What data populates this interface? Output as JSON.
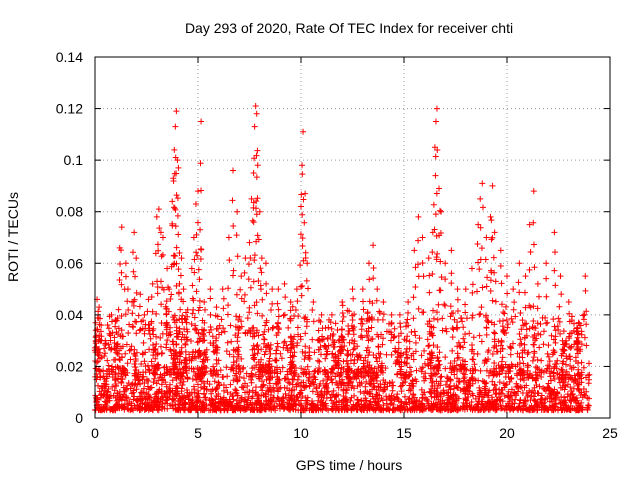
{
  "chart_data": {
    "type": "scatter",
    "title": "Day 293 of 2020, Rate Of TEC Index for receiver chti",
    "xlabel": "GPS time / hours",
    "ylabel": "ROTI / TECUs",
    "xlim": [
      0,
      25
    ],
    "ylim": [
      0,
      0.14
    ],
    "x_ticks": [
      0,
      5,
      10,
      15,
      20,
      25
    ],
    "x_tick_labels": [
      "0",
      "5",
      "10",
      "15",
      "20",
      "25"
    ],
    "y_ticks": [
      0,
      0.02,
      0.04,
      0.06,
      0.08,
      0.1,
      0.12,
      0.14
    ],
    "y_tick_labels": [
      "0",
      "0.02",
      "0.04",
      "0.06",
      "0.08",
      "0.1",
      "0.12",
      "0.14"
    ],
    "grid": true,
    "marker": "plus",
    "color": "#ff0000",
    "series": [
      {
        "points": [
          [
            0.1,
            0.046
          ],
          [
            0.2,
            0.043
          ],
          [
            0.3,
            0.036
          ],
          [
            0.5,
            0.03
          ],
          [
            0.8,
            0.04
          ],
          [
            1.0,
            0.038
          ],
          [
            1.2,
            0.066
          ],
          [
            1.3,
            0.074
          ],
          [
            1.5,
            0.06
          ],
          [
            1.6,
            0.05
          ],
          [
            1.8,
            0.045
          ],
          [
            1.9,
            0.072
          ],
          [
            2.0,
            0.062
          ],
          [
            2.2,
            0.048
          ],
          [
            2.4,
            0.04
          ],
          [
            2.6,
            0.046
          ],
          [
            2.8,
            0.052
          ],
          [
            3.0,
            0.078
          ],
          [
            3.1,
            0.081
          ],
          [
            3.2,
            0.072
          ],
          [
            3.3,
            0.07
          ],
          [
            3.5,
            0.058
          ],
          [
            3.6,
            0.05
          ],
          [
            3.75,
            0.084
          ],
          [
            3.8,
            0.093
          ],
          [
            3.85,
            0.104
          ],
          [
            3.9,
            0.113
          ],
          [
            3.95,
            0.119
          ],
          [
            4.0,
            0.1
          ],
          [
            4.05,
            0.097
          ],
          [
            4.1,
            0.064
          ],
          [
            4.2,
            0.062
          ],
          [
            4.3,
            0.05
          ],
          [
            4.5,
            0.042
          ],
          [
            4.7,
            0.058
          ],
          [
            4.8,
            0.07
          ],
          [
            4.9,
            0.083
          ],
          [
            5.0,
            0.088
          ],
          [
            5.1,
            0.073
          ],
          [
            5.15,
            0.115
          ],
          [
            5.3,
            0.045
          ],
          [
            5.6,
            0.05
          ],
          [
            5.9,
            0.043
          ],
          [
            6.2,
            0.05
          ],
          [
            6.5,
            0.07
          ],
          [
            6.7,
            0.096
          ],
          [
            6.9,
            0.08
          ],
          [
            7.1,
            0.055
          ],
          [
            7.3,
            0.062
          ],
          [
            7.5,
            0.068
          ],
          [
            7.6,
            0.085
          ],
          [
            7.7,
            0.095
          ],
          [
            7.75,
            0.113
          ],
          [
            7.8,
            0.121
          ],
          [
            7.85,
            0.118
          ],
          [
            7.9,
            0.098
          ],
          [
            8.0,
            0.08
          ],
          [
            8.1,
            0.062
          ],
          [
            8.3,
            0.06
          ],
          [
            8.6,
            0.05
          ],
          [
            8.9,
            0.05
          ],
          [
            9.2,
            0.052
          ],
          [
            9.5,
            0.045
          ],
          [
            9.8,
            0.05
          ],
          [
            10.0,
            0.082
          ],
          [
            10.05,
            0.098
          ],
          [
            10.1,
            0.111
          ],
          [
            10.2,
            0.087
          ],
          [
            10.3,
            0.06
          ],
          [
            10.6,
            0.045
          ],
          [
            11.0,
            0.04
          ],
          [
            11.5,
            0.04
          ],
          [
            12.0,
            0.045
          ],
          [
            12.5,
            0.05
          ],
          [
            13.0,
            0.05
          ],
          [
            13.3,
            0.06
          ],
          [
            13.5,
            0.067
          ],
          [
            13.7,
            0.05
          ],
          [
            14.0,
            0.045
          ],
          [
            14.4,
            0.04
          ],
          [
            14.8,
            0.04
          ],
          [
            15.2,
            0.045
          ],
          [
            15.5,
            0.065
          ],
          [
            15.7,
            0.078
          ],
          [
            15.9,
            0.07
          ],
          [
            16.2,
            0.062
          ],
          [
            16.4,
            0.072
          ],
          [
            16.5,
            0.105
          ],
          [
            16.55,
            0.115
          ],
          [
            16.6,
            0.12
          ],
          [
            16.7,
            0.089
          ],
          [
            16.8,
            0.08
          ],
          [
            17.0,
            0.06
          ],
          [
            17.3,
            0.065
          ],
          [
            17.6,
            0.05
          ],
          [
            18.0,
            0.05
          ],
          [
            18.3,
            0.058
          ],
          [
            18.6,
            0.075
          ],
          [
            18.7,
            0.085
          ],
          [
            18.8,
            0.091
          ],
          [
            19.0,
            0.07
          ],
          [
            19.2,
            0.078
          ],
          [
            19.3,
            0.09
          ],
          [
            19.4,
            0.072
          ],
          [
            19.7,
            0.065
          ],
          [
            20.0,
            0.055
          ],
          [
            20.3,
            0.05
          ],
          [
            20.6,
            0.06
          ],
          [
            20.9,
            0.055
          ],
          [
            21.1,
            0.075
          ],
          [
            21.3,
            0.088
          ],
          [
            21.5,
            0.052
          ],
          [
            21.9,
            0.06
          ],
          [
            22.3,
            0.072
          ],
          [
            22.6,
            0.055
          ],
          [
            23.0,
            0.045
          ],
          [
            23.4,
            0.035
          ],
          [
            23.8,
            0.055
          ]
        ],
        "background_band": {
          "x_range": [
            0,
            24
          ],
          "base_min": 0.003,
          "base_max": 0.02,
          "description_of_density": "dense cloud of observations concentrated between about 0.003 and 0.025 across all 24 hours, with clustered spikes up to 0.04"
        }
      }
    ]
  }
}
